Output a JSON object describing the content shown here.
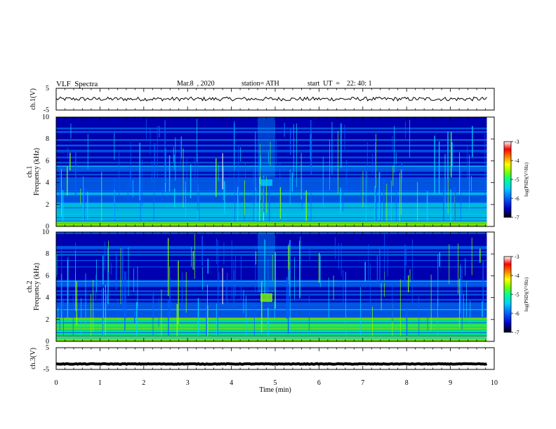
{
  "header": {
    "title": "VLF  Spectra",
    "date": "Mar.8  , 2020",
    "station": "station= ATH",
    "start": "start  UT  =    22: 40: 1"
  },
  "chart_data": [
    {
      "type": "line",
      "name": "ch1-waveform",
      "ylabel": "ch.1(V)",
      "yticks": [
        "5",
        "-5"
      ],
      "ylim": [
        -5,
        5
      ],
      "xlim": [
        0,
        10
      ],
      "level": 0.1,
      "noise": 0.9,
      "x_end": 9.83
    },
    {
      "type": "heatmap",
      "name": "ch1-spectrogram",
      "ylabel": "ch.1\nFrequency  (kHz)",
      "yticks": [
        "0",
        "2",
        "4",
        "6",
        "8",
        "10"
      ],
      "ylim": [
        0,
        10
      ],
      "xlim": [
        0,
        10
      ],
      "x_end": 9.83,
      "burst_time_min": [
        4.6,
        5.0
      ],
      "burst_freq_khz": [
        3.7,
        4.3
      ],
      "colorbar": {
        "label": "log(PSD)(V²/Hz)",
        "ticks": [
          "-3",
          "-4",
          "-5",
          "-6",
          "-7"
        ],
        "range": [
          -7,
          -3
        ]
      }
    },
    {
      "type": "heatmap",
      "name": "ch2-spectrogram",
      "ylabel": "ch.2\nFrequency  (kHz)",
      "yticks": [
        "0",
        "2",
        "4",
        "6",
        "8",
        "10"
      ],
      "ylim": [
        0,
        10
      ],
      "xlim": [
        0,
        10
      ],
      "x_end": 9.83,
      "burst_time_min": [
        4.6,
        5.0
      ],
      "burst_freq_khz": [
        3.6,
        4.4
      ],
      "colorbar": {
        "label": "log(PSD)(V²/Hz)",
        "ticks": [
          "-3",
          "-4",
          "-5",
          "-6",
          "-7"
        ],
        "range": [
          -7,
          -3
        ]
      }
    },
    {
      "type": "line",
      "name": "ch3-waveform",
      "ylabel": "ch.3(V)",
      "yticks": [
        "5",
        "-5"
      ],
      "ylim": [
        -5,
        5
      ],
      "xlim": [
        0,
        10
      ],
      "level": -2.5,
      "noise": 0.15,
      "x_end": 9.83
    }
  ],
  "xaxis": {
    "label": "Time  (min)",
    "ticks": [
      "0",
      "1",
      "2",
      "3",
      "4",
      "5",
      "6",
      "7",
      "8",
      "9",
      "10"
    ],
    "range": [
      0,
      10
    ]
  },
  "colors": {
    "background": "#000000",
    "colormap": [
      "#000000",
      "#0000c8",
      "#0060ff",
      "#00d0ff",
      "#00ff90",
      "#80ff00",
      "#ffff00",
      "#ff8000",
      "#ff0000",
      "#ffffff"
    ]
  }
}
